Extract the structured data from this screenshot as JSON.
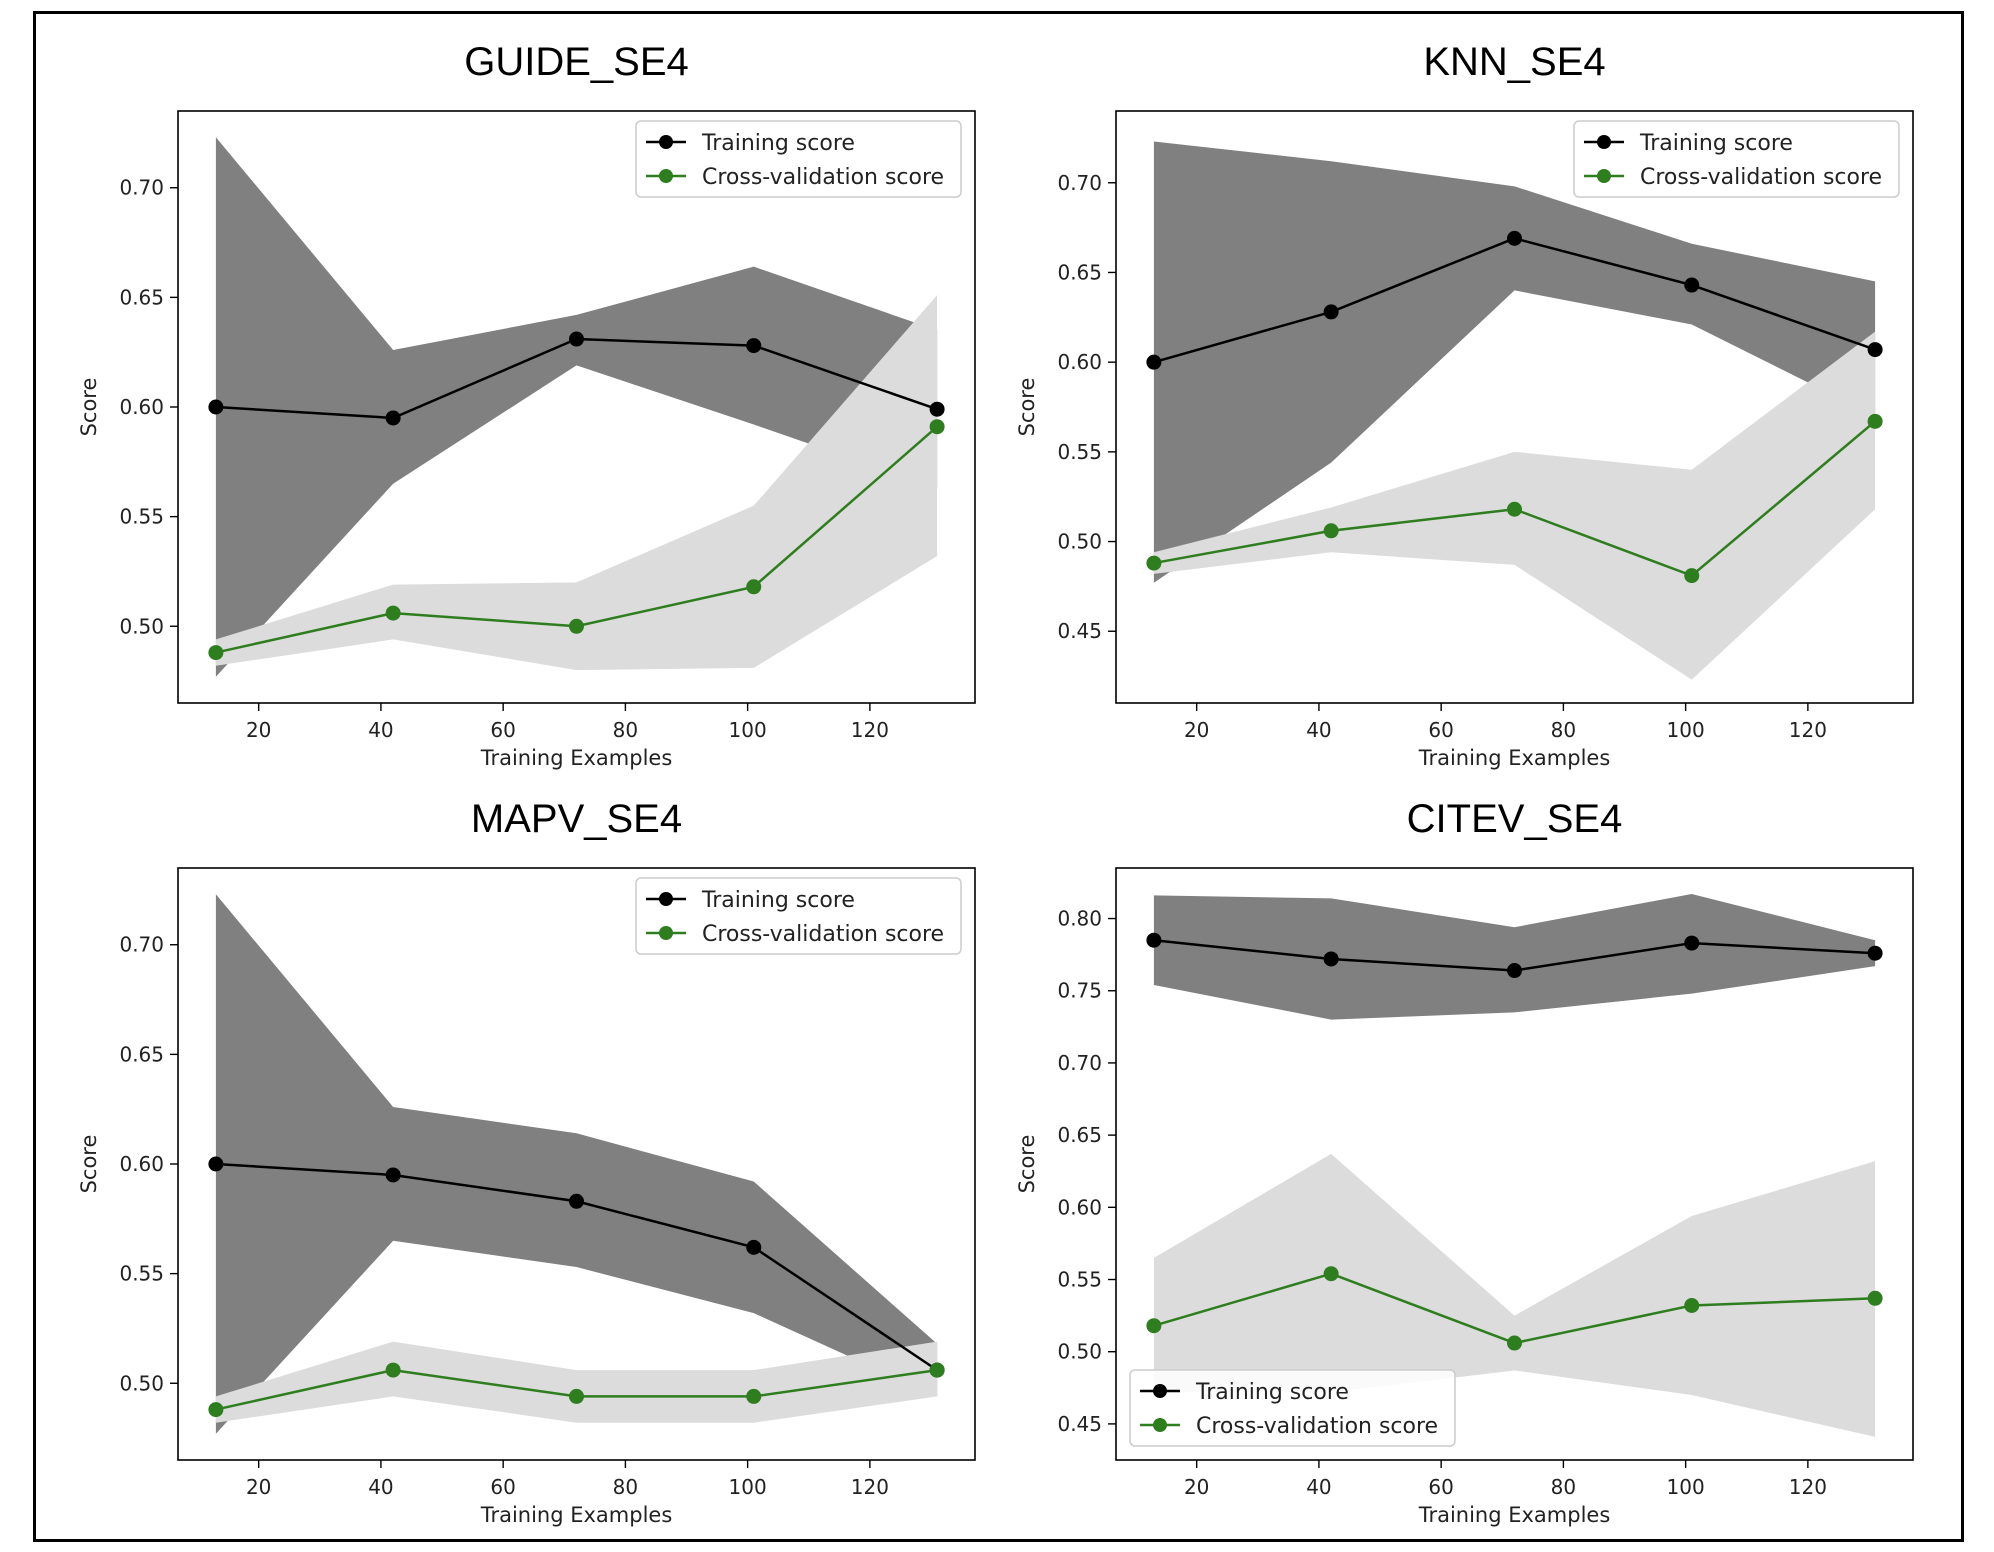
{
  "chart_data": [
    {
      "type": "line",
      "title": "GUIDE_SE4",
      "xlabel": "Training Examples",
      "ylabel": "Score",
      "xlim": [
        6.8,
        137.2
      ],
      "ylim": [
        0.465,
        0.735
      ],
      "xticks": [
        "20",
        "40",
        "60",
        "80",
        "100",
        "120"
      ],
      "yticks": [
        "0.50",
        "0.55",
        "0.60",
        "0.65",
        "0.70"
      ],
      "x": [
        13,
        42,
        72,
        101,
        131
      ],
      "legend_position": "top-right",
      "series": [
        {
          "name": "Training score",
          "color": "#000000",
          "values": [
            0.6,
            0.595,
            0.631,
            0.628,
            0.599
          ],
          "band": {
            "lower": [
              0.477,
              0.565,
              0.619,
              0.592,
              0.563
            ],
            "upper": [
              0.723,
              0.626,
              0.642,
              0.664,
              0.635
            ],
            "color": "#808080"
          }
        },
        {
          "name": "Cross-validation score",
          "color": "#2e7d1e",
          "values": [
            0.488,
            0.506,
            0.5,
            0.518,
            0.591
          ],
          "band": {
            "lower": [
              0.482,
              0.494,
              0.48,
              0.481,
              0.532
            ],
            "upper": [
              0.494,
              0.519,
              0.52,
              0.555,
              0.651
            ],
            "color": "#dcdcdc"
          }
        }
      ]
    },
    {
      "type": "line",
      "title": "KNN_SE4",
      "xlabel": "Training Examples",
      "ylabel": "Score",
      "xlim": [
        6.8,
        137.2
      ],
      "ylim": [
        0.41,
        0.74
      ],
      "xticks": [
        "20",
        "40",
        "60",
        "80",
        "100",
        "120"
      ],
      "yticks": [
        "0.45",
        "0.50",
        "0.55",
        "0.60",
        "0.65",
        "0.70"
      ],
      "x": [
        13,
        42,
        72,
        101,
        131
      ],
      "legend_position": "top-right",
      "series": [
        {
          "name": "Training score",
          "color": "#000000",
          "values": [
            0.6,
            0.628,
            0.669,
            0.643,
            0.607
          ],
          "band": {
            "lower": [
              0.477,
              0.544,
              0.64,
              0.621,
              0.57
            ],
            "upper": [
              0.723,
              0.712,
              0.698,
              0.666,
              0.645
            ],
            "color": "#808080"
          }
        },
        {
          "name": "Cross-validation score",
          "color": "#2e7d1e",
          "values": [
            0.488,
            0.506,
            0.518,
            0.481,
            0.567
          ],
          "band": {
            "lower": [
              0.482,
              0.494,
              0.487,
              0.423,
              0.518
            ],
            "upper": [
              0.494,
              0.519,
              0.55,
              0.54,
              0.617
            ],
            "color": "#dcdcdc"
          }
        }
      ]
    },
    {
      "type": "line",
      "title": "MAPV_SE4",
      "xlabel": "Training Examples",
      "ylabel": "Score",
      "xlim": [
        6.8,
        137.2
      ],
      "ylim": [
        0.465,
        0.735
      ],
      "xticks": [
        "20",
        "40",
        "60",
        "80",
        "100",
        "120"
      ],
      "yticks": [
        "0.50",
        "0.55",
        "0.60",
        "0.65",
        "0.70"
      ],
      "x": [
        13,
        42,
        72,
        101,
        131
      ],
      "legend_position": "top-right",
      "series": [
        {
          "name": "Training score",
          "color": "#000000",
          "values": [
            0.6,
            0.595,
            0.583,
            0.562,
            0.506
          ],
          "band": {
            "lower": [
              0.477,
              0.565,
              0.553,
              0.532,
              0.494
            ],
            "upper": [
              0.723,
              0.626,
              0.614,
              0.592,
              0.518
            ],
            "color": "#808080"
          }
        },
        {
          "name": "Cross-validation score",
          "color": "#2e7d1e",
          "values": [
            0.488,
            0.506,
            0.494,
            0.494,
            0.506
          ],
          "band": {
            "lower": [
              0.482,
              0.494,
              0.482,
              0.482,
              0.494
            ],
            "upper": [
              0.494,
              0.519,
              0.506,
              0.506,
              0.519
            ],
            "color": "#dcdcdc"
          }
        }
      ]
    },
    {
      "type": "line",
      "title": "CITEV_SE4",
      "xlabel": "Training Examples",
      "ylabel": "Score",
      "xlim": [
        6.8,
        137.2
      ],
      "ylim": [
        0.425,
        0.835
      ],
      "xticks": [
        "20",
        "40",
        "60",
        "80",
        "100",
        "120"
      ],
      "yticks": [
        "0.45",
        "0.50",
        "0.55",
        "0.60",
        "0.65",
        "0.70",
        "0.75",
        "0.80"
      ],
      "x": [
        13,
        42,
        72,
        101,
        131
      ],
      "legend_position": "bottom-left",
      "series": [
        {
          "name": "Training score",
          "color": "#000000",
          "values": [
            0.785,
            0.772,
            0.764,
            0.783,
            0.776
          ],
          "band": {
            "lower": [
              0.754,
              0.73,
              0.735,
              0.748,
              0.767
            ],
            "upper": [
              0.816,
              0.814,
              0.794,
              0.817,
              0.785
            ],
            "color": "#808080"
          }
        },
        {
          "name": "Cross-validation score",
          "color": "#2e7d1e",
          "values": [
            0.518,
            0.554,
            0.506,
            0.532,
            0.537
          ],
          "band": {
            "lower": [
              0.472,
              0.472,
              0.487,
              0.47,
              0.441
            ],
            "upper": [
              0.565,
              0.637,
              0.525,
              0.594,
              0.632
            ],
            "color": "#dcdcdc"
          }
        }
      ]
    }
  ]
}
